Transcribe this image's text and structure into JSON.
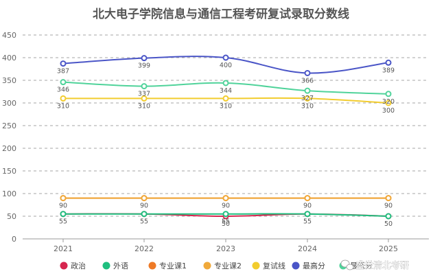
{
  "chart_data": {
    "type": "line",
    "title": "北大电子学院信息与通信工程考研复试录取分数线",
    "xlabel": "",
    "ylabel": "",
    "categories": [
      "2021",
      "2022",
      "2023",
      "2024",
      "2025"
    ],
    "ylim": [
      0,
      450
    ],
    "yticks": [
      0,
      50,
      100,
      150,
      200,
      250,
      300,
      350,
      400,
      450
    ],
    "grid": "horizontal dashed",
    "legend_position": "bottom",
    "series": [
      {
        "name": "政治",
        "color": "#d6264f",
        "values": [
          55,
          55,
          50,
          55,
          50
        ],
        "labels": [
          "",
          "",
          "50",
          "",
          ""
        ],
        "label_pos": "below"
      },
      {
        "name": "外语",
        "color": "#1fbf7f",
        "values": [
          55,
          55,
          55,
          55,
          50
        ],
        "labels": [
          "55",
          "55",
          "55",
          "55",
          "50"
        ],
        "label_pos": "below"
      },
      {
        "name": "专业课1",
        "color": "#ee7a26",
        "values": [
          90,
          90,
          90,
          90,
          90
        ],
        "labels": [
          "",
          "",
          "",
          "",
          ""
        ],
        "label_pos": "below"
      },
      {
        "name": "专业课2",
        "color": "#f0a93a",
        "values": [
          90,
          90,
          90,
          90,
          90
        ],
        "labels": [
          "90",
          "90",
          "90",
          "90",
          "90"
        ],
        "label_pos": "below"
      },
      {
        "name": "复试线",
        "color": "#f2cc2e",
        "values": [
          310,
          310,
          310,
          310,
          300
        ],
        "labels": [
          "310",
          "310",
          "310",
          "310",
          "300"
        ],
        "label_pos": "below"
      },
      {
        "name": "最高分",
        "color": "#4a55c7",
        "values": [
          387,
          399,
          400,
          366,
          389
        ],
        "labels": [
          "387",
          "399",
          "400",
          "366",
          "389"
        ],
        "label_pos": "below"
      },
      {
        "name": "最低分",
        "color": "#4fd39a",
        "values": [
          346,
          337,
          344,
          327,
          320
        ],
        "labels": [
          "346",
          "337",
          "344",
          "327",
          "320"
        ],
        "label_pos": "below"
      }
    ]
  },
  "watermark": "盛世清北考研",
  "watermark_icon": "wechat-icon"
}
